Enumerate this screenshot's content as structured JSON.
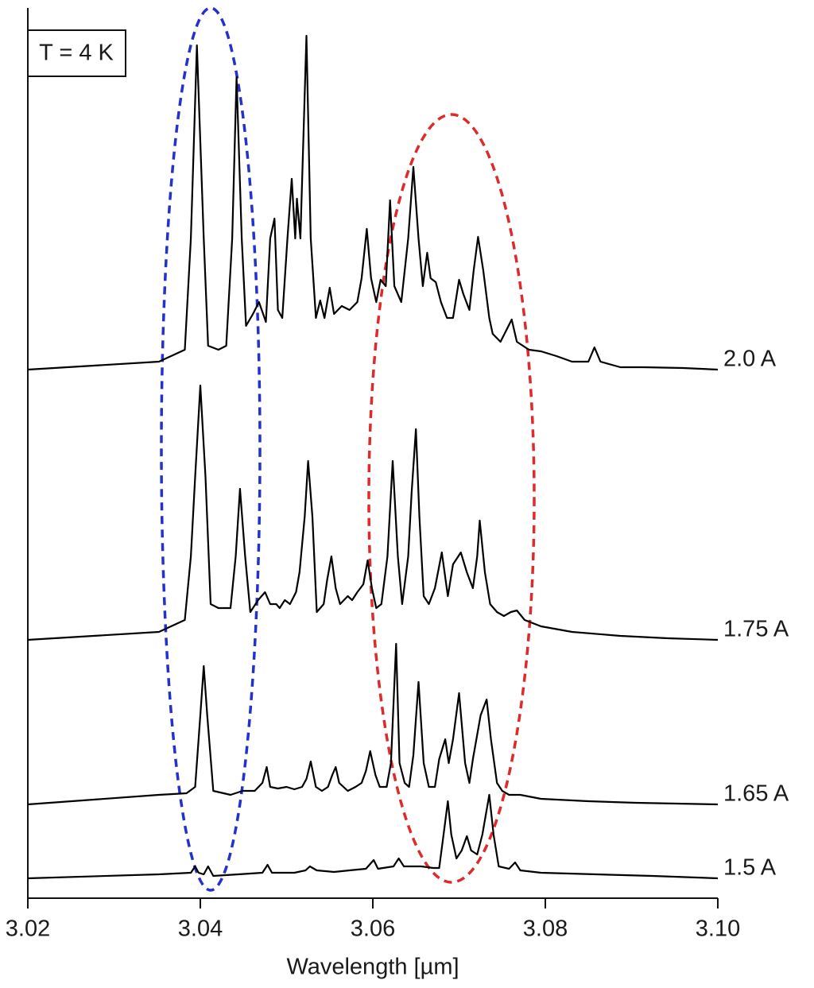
{
  "chart_data": {
    "type": "line",
    "annotation": "T = 4 K",
    "x_label": "Wavelength [µm]",
    "xlim": [
      3.02,
      3.1
    ],
    "xticks": [
      3.02,
      3.04,
      3.06,
      3.08,
      {
        "value": 3.1,
        "label": "3.10"
      }
    ],
    "ylim": [
      0,
      112
    ],
    "series": [
      {
        "name": "2.0 A",
        "color": "#000000",
        "x": [
          3.02,
          3.0352,
          3.0382,
          3.0389,
          3.0396,
          3.0404,
          3.0409,
          3.0421,
          3.043,
          3.0437,
          3.0442,
          3.0448,
          3.0453,
          3.0461,
          3.0468,
          3.0476,
          3.0481,
          3.0486,
          3.049,
          3.0495,
          3.0501,
          3.0506,
          3.051,
          3.0512,
          3.0516,
          3.0523,
          3.0528,
          3.0534,
          3.0539,
          3.0544,
          3.055,
          3.0555,
          3.0564,
          3.0573,
          3.0582,
          3.0587,
          3.0593,
          3.0598,
          3.0604,
          3.0609,
          3.0615,
          3.062,
          3.0625,
          3.0633,
          3.0641,
          3.0647,
          3.0653,
          3.0658,
          3.0663,
          3.0667,
          3.0673,
          3.0679,
          3.0686,
          3.0693,
          3.07,
          3.0705,
          3.0712,
          3.0717,
          3.0722,
          3.0728,
          3.0735,
          3.0739,
          3.0748,
          3.0755,
          3.0761,
          3.0767,
          3.0781,
          3.0795,
          3.0813,
          3.0831,
          3.085,
          3.0857,
          3.0864,
          3.0887,
          3.0914,
          3.096,
          3.1
        ],
        "values": [
          66.5,
          67.5,
          69,
          83,
          107.3,
          83,
          69.5,
          69,
          69.5,
          83,
          103.3,
          83,
          72,
          73.5,
          75,
          72.5,
          83,
          85.5,
          74,
          73,
          83,
          90.5,
          83,
          88,
          83,
          108.5,
          83,
          73,
          75.2,
          73,
          76.8,
          73.5,
          74.5,
          74,
          75,
          78,
          84.2,
          78,
          75,
          77.8,
          77,
          87.8,
          77,
          75,
          83,
          92,
          83,
          77,
          81.2,
          78,
          77.5,
          75,
          73,
          73,
          77.8,
          76,
          74,
          79,
          83.2,
          79,
          73,
          71,
          70,
          71.5,
          72.8,
          70,
          69,
          68.8,
          68.2,
          67.5,
          67.5,
          69.3,
          67.5,
          66.8,
          66.8,
          66.7,
          66.5
        ]
      },
      {
        "name": "1.75 A",
        "color": "#000000",
        "x": [
          3.02,
          3.0352,
          3.0382,
          3.0389,
          3.0394,
          3.04,
          3.0406,
          3.0412,
          3.0421,
          3.0435,
          3.0441,
          3.0446,
          3.0452,
          3.0458,
          3.0467,
          3.0475,
          3.0481,
          3.0488,
          3.0492,
          3.0498,
          3.0504,
          3.0511,
          3.0515,
          3.0521,
          3.0525,
          3.053,
          3.0535,
          3.0543,
          3.0547,
          3.0552,
          3.0557,
          3.0562,
          3.0571,
          3.0576,
          3.0582,
          3.0589,
          3.0594,
          3.0599,
          3.0604,
          3.061,
          3.0617,
          3.0623,
          3.0629,
          3.0634,
          3.0641,
          3.0645,
          3.065,
          3.0654,
          3.0659,
          3.0665,
          3.0672,
          3.068,
          3.0687,
          3.0693,
          3.0702,
          3.0709,
          3.0716,
          3.0721,
          3.0724,
          3.073,
          3.0736,
          3.0744,
          3.0752,
          3.076,
          3.0767,
          3.0776,
          3.0795,
          3.0831,
          3.0887,
          3.0942,
          3.1
        ],
        "values": [
          32.5,
          33.5,
          35,
          43,
          53,
          64.5,
          53,
          37,
          36.5,
          36.5,
          43,
          51.5,
          43,
          36,
          37.5,
          38.5,
          37,
          37,
          36.5,
          37.5,
          37,
          38.5,
          41,
          48,
          55,
          48,
          36,
          37,
          40,
          43,
          39,
          37,
          38,
          37.5,
          38.5,
          39.5,
          42.5,
          39,
          36.5,
          37,
          43,
          55,
          43,
          37,
          43,
          51,
          59,
          48,
          38,
          37,
          39,
          43.5,
          38,
          42,
          43.5,
          41,
          39,
          43,
          47.5,
          41,
          37,
          36,
          35.5,
          36,
          36.2,
          35,
          34.2,
          33.5,
          33,
          32.7,
          32.5
        ]
      },
      {
        "name": "1.65 A",
        "color": "#000000",
        "x": [
          3.02,
          3.0352,
          3.0384,
          3.0394,
          3.04,
          3.0404,
          3.0408,
          3.0415,
          3.0435,
          3.0449,
          3.0463,
          3.0472,
          3.0477,
          3.0481,
          3.049,
          3.05,
          3.0509,
          3.0518,
          3.0523,
          3.0528,
          3.0534,
          3.0541,
          3.0548,
          3.0553,
          3.0557,
          3.0561,
          3.0571,
          3.058,
          3.0587,
          3.0592,
          3.0597,
          3.0603,
          3.0608,
          3.0616,
          3.0621,
          3.0627,
          3.0631,
          3.0637,
          3.0642,
          3.0647,
          3.0653,
          3.0659,
          3.0665,
          3.0672,
          3.0677,
          3.0684,
          3.0688,
          3.0693,
          3.07,
          3.0707,
          3.0712,
          3.0716,
          3.0725,
          3.0732,
          3.0737,
          3.0744,
          3.075,
          3.0758,
          3.0771,
          3.0795,
          3.085,
          3.0905,
          3.1
        ],
        "values": [
          11.8,
          13,
          13.2,
          14,
          23,
          29.2,
          23,
          13.5,
          13,
          13.5,
          13.5,
          14.5,
          16.5,
          14,
          13.8,
          14,
          13.7,
          14,
          15,
          17.2,
          14,
          13.5,
          14,
          15.5,
          16.5,
          14.5,
          13.5,
          14,
          14.5,
          16,
          18.5,
          15.5,
          14,
          14,
          17,
          32,
          17,
          14.5,
          14,
          18,
          27.2,
          17,
          14,
          14,
          17.5,
          20,
          17,
          20,
          25.8,
          17,
          14.5,
          17.5,
          23,
          25,
          20,
          14.5,
          13.5,
          13,
          13,
          12.5,
          12.2,
          12,
          11.8
        ]
      },
      {
        "name": "1.5 A",
        "color": "#000000",
        "x": [
          3.02,
          3.0352,
          3.0389,
          3.0394,
          3.0398,
          3.0404,
          3.0409,
          3.0415,
          3.0444,
          3.0472,
          3.0478,
          3.0483,
          3.0509,
          3.0522,
          3.0527,
          3.0535,
          3.0555,
          3.0573,
          3.0592,
          3.0601,
          3.0606,
          3.0624,
          3.063,
          3.0636,
          3.0656,
          3.067,
          3.0677,
          3.0682,
          3.0687,
          3.0691,
          3.0697,
          3.0703,
          3.0709,
          3.0714,
          3.0721,
          3.0727,
          3.0735,
          3.074,
          3.0746,
          3.0758,
          3.0765,
          3.0771,
          3.0795,
          3.0859,
          3.0924,
          3.1
        ],
        "values": [
          2.5,
          3,
          3.2,
          4,
          3.2,
          3,
          4,
          2.8,
          3,
          3.2,
          4.2,
          3.2,
          3.2,
          3.5,
          4,
          3.5,
          3.3,
          3.5,
          3.7,
          4.8,
          3.7,
          4,
          5,
          4,
          4,
          3.8,
          3.8,
          8,
          12.2,
          8,
          5,
          6,
          7.8,
          6,
          5.5,
          8,
          13,
          8,
          4,
          3.7,
          4.5,
          3.5,
          3.2,
          3,
          2.8,
          2.5
        ]
      }
    ]
  }
}
